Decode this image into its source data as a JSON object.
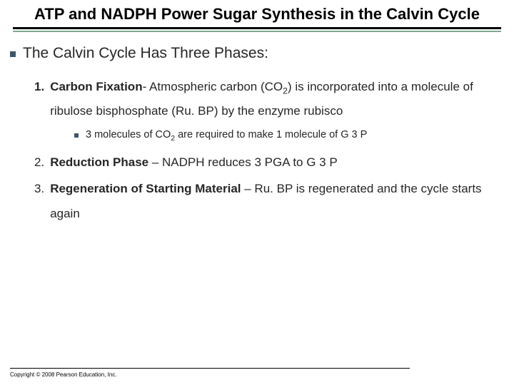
{
  "colors": {
    "bullet": "#3f5569",
    "underline_accent": "#7fa88f",
    "text": "#262626",
    "background": "#ffffff"
  },
  "title": "ATP and NADPH Power Sugar Synthesis in the Calvin Cycle",
  "heading": "The Calvin Cycle Has Three Phases:",
  "items": {
    "one": {
      "num": "1.",
      "label": "Carbon Fixation",
      "sep": "- ",
      "text_a": "Atmospheric carbon (CO",
      "sub_a": "2",
      "text_b": ") is incorporated into a molecule of ribulose bisphosphate (Ru. BP) by the enzyme rubisco"
    },
    "sub": {
      "a": "3 molecules of CO",
      "sub": "2",
      "b": " are required to make 1 molecule of G 3 P"
    },
    "two": {
      "num": "2.",
      "label": "Reduction Phase",
      "sep": " – ",
      "text": "NADPH reduces 3 PGA to G 3 P"
    },
    "three": {
      "num": "3.",
      "label": "Regeneration of Starting Material",
      "sep": " – ",
      "text": "Ru. BP is regenerated and the cycle starts again"
    }
  },
  "copyright": "Copyright © 2008 Pearson Education, Inc."
}
